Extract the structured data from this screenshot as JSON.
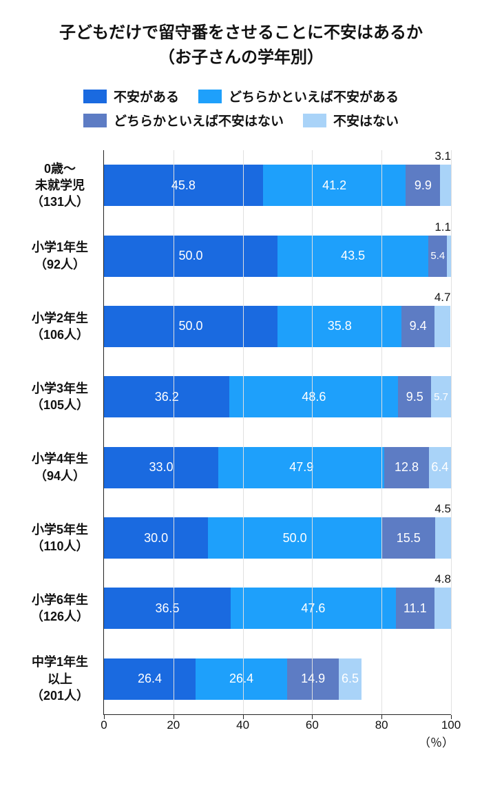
{
  "title_line1": "子どもだけで留守番をさせることに不安はあるか",
  "title_line2": "（お子さんの学年別）",
  "title_fontsize": 24,
  "legend_fontsize": 19,
  "legend": [
    {
      "label": "不安がある",
      "color": "#1a6ae0"
    },
    {
      "label": "どちらかといえば不安がある",
      "color": "#1ea0fb"
    },
    {
      "label": "どちらかといえば不安はない",
      "color": "#5d7cc4"
    },
    {
      "label": "不安はない",
      "color": "#a9d3f8"
    }
  ],
  "x_axis": {
    "min": 0,
    "max": 100,
    "step": 20,
    "ticks": [
      0,
      20,
      40,
      60,
      80,
      100
    ],
    "unit_label": "（％）"
  },
  "rows": [
    {
      "label": "0歳～\n未就学児\n（131人）",
      "values": [
        45.8,
        41.2,
        9.9,
        3.1
      ],
      "callout_last": "3.1"
    },
    {
      "label": "小学1年生\n（92人）",
      "values": [
        50.0,
        43.5,
        5.4,
        1.1
      ],
      "callout_last": "1.1"
    },
    {
      "label": "小学2年生\n（106人）",
      "values": [
        50.0,
        35.8,
        9.4,
        4.7
      ],
      "callout_last": "4.7"
    },
    {
      "label": "小学3年生\n（105人）",
      "values": [
        36.2,
        48.6,
        9.5,
        5.7
      ]
    },
    {
      "label": "小学4年生\n（94人）",
      "values": [
        33.0,
        47.9,
        12.8,
        6.4
      ]
    },
    {
      "label": "小学5年生\n（110人）",
      "values": [
        30.0,
        50.0,
        15.5,
        4.5
      ],
      "callout_last": "4.5"
    },
    {
      "label": "小学6年生\n（126人）",
      "values": [
        36.5,
        47.6,
        11.1,
        4.8
      ],
      "callout_last": "4.8"
    },
    {
      "label": "中学1年生\n以上\n（201人）",
      "values": [
        26.4,
        26.4,
        14.9,
        6.5
      ]
    }
  ],
  "min_label_width_pct": 6
}
